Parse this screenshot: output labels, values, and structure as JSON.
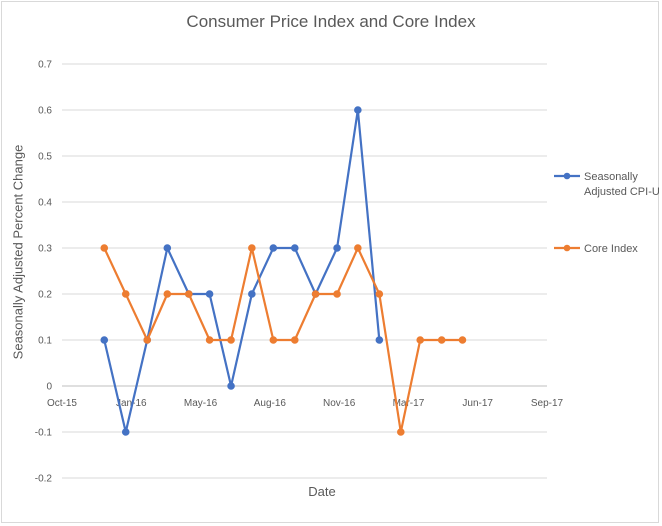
{
  "chart_data": {
    "type": "line",
    "title": "Consumer Price Index and Core Index",
    "xlabel": "Date",
    "ylabel": "Seasonally Adjusted Percent Change",
    "ylim": [
      -0.2,
      0.7
    ],
    "y_ticks": [
      "0.7",
      "0.6",
      "0.5",
      "0.4",
      "0.3",
      "0.2",
      "0.1",
      "0",
      "-0.1",
      "-0.2"
    ],
    "y_tick_values": [
      0.7,
      0.6,
      0.5,
      0.4,
      0.3,
      0.2,
      0.1,
      0,
      -0.1,
      -0.2
    ],
    "x_ticks": [
      "Oct-15",
      "Jan-16",
      "May-16",
      "Aug-16",
      "Nov-16",
      "Mar-17",
      "Jun-17",
      "Sep-17"
    ],
    "x_tick_dates": [
      "2015-10-01",
      "2016-01-09",
      "2016-04-18",
      "2016-07-27",
      "2016-11-04",
      "2017-02-12",
      "2017-05-23",
      "2017-08-31"
    ],
    "xlim": [
      "2015-10-01",
      "2017-08-31"
    ],
    "x": [
      "2015-12-01",
      "2016-01-01",
      "2016-02-01",
      "2016-03-01",
      "2016-04-01",
      "2016-05-01",
      "2016-06-01",
      "2016-07-01",
      "2016-08-01",
      "2016-09-01",
      "2016-10-01",
      "2016-11-01",
      "2016-12-01",
      "2017-01-01",
      "2017-02-01",
      "2017-03-01",
      "2017-04-01",
      "2017-05-01"
    ],
    "series": [
      {
        "name": "Seasonally Adjusted CPI-U",
        "legend_lines": [
          "Seasonally",
          "Adjusted CPI-U"
        ],
        "color": "#4472c4",
        "values": [
          0.1,
          -0.1,
          0.1,
          0.3,
          0.2,
          0.2,
          0.0,
          0.2,
          0.3,
          0.3,
          0.2,
          0.3,
          0.6,
          0.1,
          null,
          null,
          null,
          null
        ]
      },
      {
        "name": "Core Index",
        "legend_lines": [
          "Core Index"
        ],
        "color": "#ed7d31",
        "values": [
          0.3,
          0.2,
          0.1,
          0.2,
          0.2,
          0.1,
          0.1,
          0.3,
          0.1,
          0.1,
          0.2,
          0.2,
          0.3,
          0.2,
          -0.1,
          0.1,
          0.1,
          0.1
        ]
      }
    ],
    "grid": true,
    "legend_position": "right"
  }
}
